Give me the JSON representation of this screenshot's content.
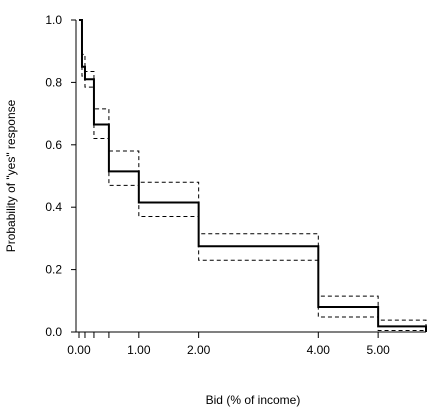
{
  "chart_data": {
    "type": "line",
    "title": "",
    "xlabel": "Bid (% of income)",
    "ylabel": "Probability of \"yes\" response",
    "xlim": [
      -0.05,
      5.8
    ],
    "ylim": [
      0,
      1.0
    ],
    "x_ticks": [
      {
        "value": 0.0,
        "label": "0.00"
      },
      {
        "value": 0.1,
        "label": ""
      },
      {
        "value": 0.25,
        "label": ""
      },
      {
        "value": 0.5,
        "label": ""
      },
      {
        "value": 1.0,
        "label": "1.00"
      },
      {
        "value": 2.0,
        "label": "2.00"
      },
      {
        "value": 4.0,
        "label": "4.00"
      },
      {
        "value": 5.0,
        "label": "5.00"
      }
    ],
    "y_ticks": [
      {
        "value": 0.0,
        "label": "0.0"
      },
      {
        "value": 0.2,
        "label": "0.2"
      },
      {
        "value": 0.4,
        "label": "0.4"
      },
      {
        "value": 0.6,
        "label": "0.6"
      },
      {
        "value": 0.8,
        "label": "0.8"
      },
      {
        "value": 1.0,
        "label": "1.0"
      }
    ],
    "grid": false,
    "legend": "none",
    "series": [
      {
        "style": "solid",
        "x": [
          0.0,
          0.05,
          0.1,
          0.25,
          0.5,
          1.0,
          2.0,
          4.0,
          5.0,
          5.8
        ],
        "y": [
          1.0,
          0.85,
          0.81,
          0.665,
          0.515,
          0.415,
          0.275,
          0.08,
          0.018,
          0.0
        ]
      },
      {
        "style": "dashed",
        "x": [
          0.0,
          0.05,
          0.1,
          0.25,
          0.5,
          1.0,
          2.0,
          4.0,
          5.0,
          5.8
        ],
        "y": [
          1.0,
          0.89,
          0.835,
          0.715,
          0.58,
          0.48,
          0.315,
          0.115,
          0.038,
          0.012
        ]
      },
      {
        "style": "dashed",
        "x": [
          0.0,
          0.05,
          0.1,
          0.25,
          0.5,
          1.0,
          2.0,
          4.0,
          5.0,
          5.8
        ],
        "y": [
          1.0,
          0.82,
          0.785,
          0.62,
          0.47,
          0.37,
          0.23,
          0.048,
          0.005,
          0.0
        ]
      }
    ]
  }
}
